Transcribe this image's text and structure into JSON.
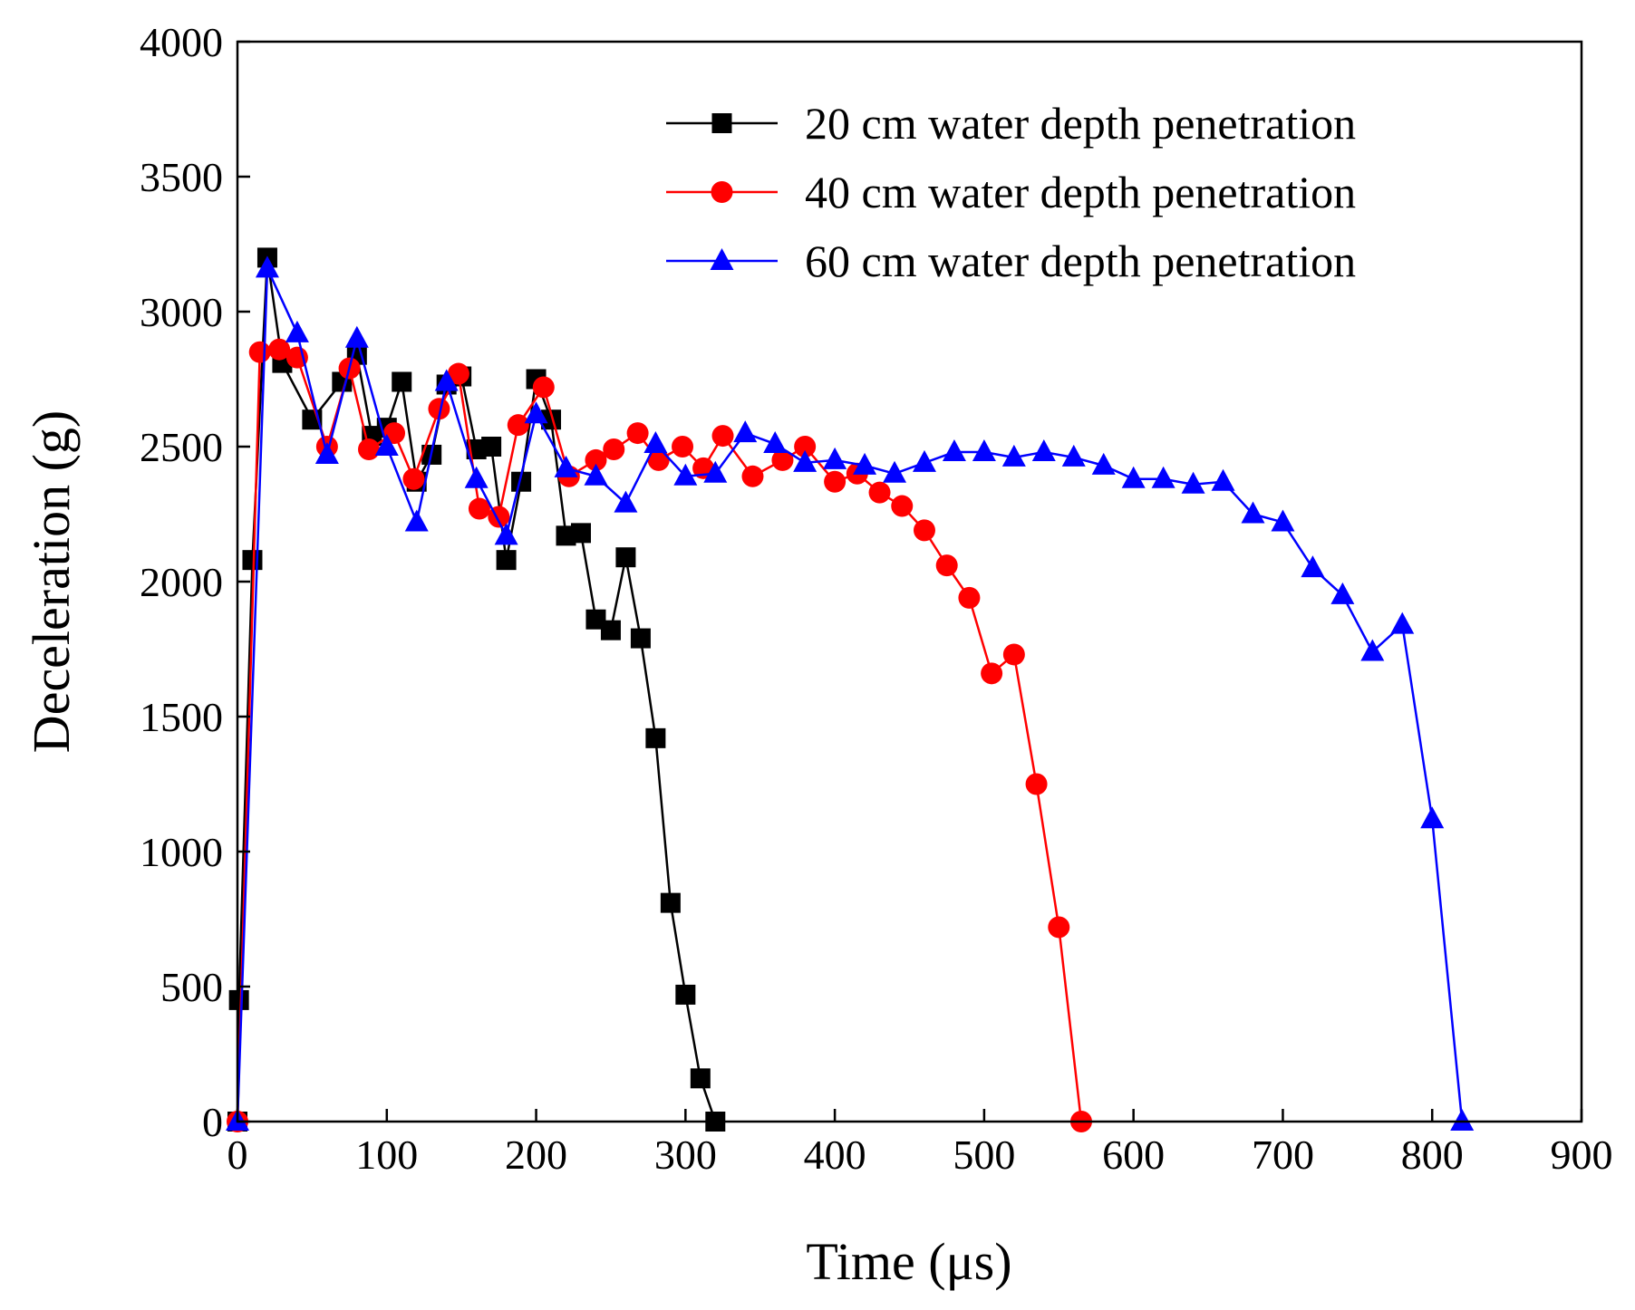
{
  "chart_data": {
    "type": "line",
    "title": "",
    "xlabel": "Time (μs)",
    "ylabel": "Deceleration (g)",
    "xlim": [
      0,
      900
    ],
    "ylim": [
      0,
      4000
    ],
    "xticks": [
      "0",
      "100",
      "200",
      "300",
      "400",
      "500",
      "600",
      "700",
      "800",
      "900"
    ],
    "yticks": [
      "0",
      "500",
      "1000",
      "1500",
      "2000",
      "2500",
      "3000",
      "3500",
      "4000"
    ],
    "legend_position": "top-right",
    "grid": false,
    "series": [
      {
        "name": "20 cm water depth penetration",
        "color": "#000000",
        "marker": "square",
        "x": [
          0,
          1,
          10,
          20,
          30,
          50,
          70,
          80,
          90,
          100,
          110,
          120,
          130,
          140,
          150,
          160,
          170,
          180,
          190,
          200,
          210,
          220,
          230,
          240,
          250,
          260,
          270,
          280,
          290,
          300,
          310,
          320
        ],
        "y": [
          0,
          450,
          2080,
          3200,
          2810,
          2600,
          2740,
          2840,
          2540,
          2570,
          2740,
          2370,
          2470,
          2730,
          2760,
          2490,
          2500,
          2080,
          2370,
          2750,
          2600,
          2170,
          2180,
          1860,
          1820,
          2090,
          1790,
          1420,
          810,
          470,
          160,
          0
        ]
      },
      {
        "name": "40 cm water depth penetration",
        "color": "#ff0000",
        "marker": "circle",
        "x": [
          0,
          15,
          28,
          40,
          60,
          75,
          88,
          105,
          118,
          135,
          148,
          162,
          175,
          188,
          205,
          222,
          240,
          252,
          268,
          282,
          298,
          312,
          325,
          345,
          365,
          380,
          400,
          415,
          430,
          445,
          460,
          475,
          490,
          505,
          520,
          535,
          550,
          565
        ],
        "y": [
          0,
          2850,
          2860,
          2830,
          2500,
          2790,
          2490,
          2550,
          2380,
          2640,
          2770,
          2270,
          2240,
          2580,
          2720,
          2390,
          2450,
          2490,
          2550,
          2450,
          2500,
          2420,
          2540,
          2390,
          2450,
          2500,
          2370,
          2400,
          2330,
          2280,
          2190,
          2060,
          1940,
          1660,
          1730,
          1250,
          720,
          0
        ]
      },
      {
        "name": "60 cm water depth penetration",
        "color": "#0000ff",
        "marker": "triangle",
        "x": [
          0,
          20,
          40,
          60,
          80,
          100,
          120,
          140,
          160,
          180,
          200,
          220,
          240,
          260,
          280,
          300,
          320,
          340,
          360,
          380,
          400,
          420,
          440,
          460,
          480,
          500,
          520,
          540,
          560,
          580,
          600,
          620,
          640,
          660,
          680,
          700,
          720,
          740,
          760,
          780,
          800,
          820
        ],
        "y": [
          0,
          3160,
          2920,
          2470,
          2900,
          2500,
          2220,
          2740,
          2380,
          2170,
          2620,
          2420,
          2390,
          2290,
          2510,
          2390,
          2400,
          2550,
          2510,
          2440,
          2450,
          2430,
          2400,
          2440,
          2480,
          2480,
          2460,
          2480,
          2460,
          2430,
          2380,
          2380,
          2360,
          2370,
          2250,
          2220,
          2050,
          1950,
          1740,
          1840,
          1120,
          0
        ]
      }
    ]
  }
}
